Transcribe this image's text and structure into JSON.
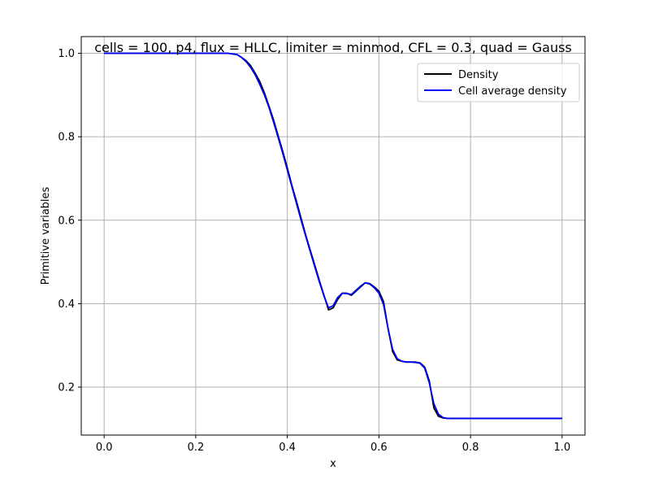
{
  "chart_data": {
    "type": "line",
    "title": "cells = 100, p4, flux = HLLC, limiter = minmod, CFL = 0.3, quad = Gauss",
    "xlabel": "x",
    "ylabel": "Primitive variables",
    "xlim": [
      -0.05,
      1.05
    ],
    "ylim": [
      0.085,
      1.04
    ],
    "xticks": [
      0.0,
      0.2,
      0.4,
      0.6,
      0.8,
      1.0
    ],
    "xtick_labels": [
      "0.0",
      "0.2",
      "0.4",
      "0.6",
      "0.8",
      "1.0"
    ],
    "yticks": [
      0.2,
      0.4,
      0.6,
      0.8,
      1.0
    ],
    "ytick_labels": [
      "0.2",
      "0.4",
      "0.6",
      "0.8",
      "1.0"
    ],
    "grid": true,
    "legend_position": "upper right",
    "series": [
      {
        "name": "Density",
        "color": "#000000",
        "x": [
          0.0,
          0.27,
          0.29,
          0.3,
          0.31,
          0.32,
          0.33,
          0.34,
          0.35,
          0.36,
          0.37,
          0.38,
          0.39,
          0.4,
          0.41,
          0.42,
          0.43,
          0.44,
          0.45,
          0.46,
          0.47,
          0.48,
          0.49,
          0.5,
          0.51,
          0.52,
          0.53,
          0.54,
          0.55,
          0.56,
          0.57,
          0.58,
          0.59,
          0.6,
          0.61,
          0.62,
          0.63,
          0.64,
          0.65,
          0.66,
          0.67,
          0.68,
          0.69,
          0.7,
          0.71,
          0.72,
          0.73,
          0.74,
          0.75,
          1.0
        ],
        "y": [
          1.0,
          1.0,
          0.997,
          0.99,
          0.982,
          0.97,
          0.952,
          0.932,
          0.905,
          0.873,
          0.84,
          0.802,
          0.765,
          0.725,
          0.683,
          0.645,
          0.605,
          0.565,
          0.528,
          0.492,
          0.455,
          0.42,
          0.385,
          0.39,
          0.41,
          0.425,
          0.425,
          0.42,
          0.43,
          0.44,
          0.45,
          0.448,
          0.44,
          0.43,
          0.405,
          0.34,
          0.285,
          0.265,
          0.262,
          0.26,
          0.26,
          0.26,
          0.258,
          0.248,
          0.215,
          0.15,
          0.13,
          0.126,
          0.125,
          0.125
        ]
      },
      {
        "name": "Cell average density",
        "color": "#0000ff",
        "x": [
          0.0,
          0.27,
          0.29,
          0.3,
          0.31,
          0.32,
          0.33,
          0.34,
          0.35,
          0.36,
          0.37,
          0.38,
          0.39,
          0.4,
          0.41,
          0.42,
          0.43,
          0.44,
          0.45,
          0.46,
          0.47,
          0.48,
          0.49,
          0.5,
          0.51,
          0.52,
          0.53,
          0.54,
          0.55,
          0.56,
          0.57,
          0.58,
          0.59,
          0.6,
          0.61,
          0.62,
          0.63,
          0.64,
          0.65,
          0.66,
          0.67,
          0.68,
          0.69,
          0.7,
          0.71,
          0.72,
          0.73,
          0.74,
          0.75,
          1.0
        ],
        "y": [
          1.0,
          1.0,
          0.997,
          0.99,
          0.98,
          0.966,
          0.948,
          0.925,
          0.9,
          0.87,
          0.835,
          0.798,
          0.76,
          0.72,
          0.68,
          0.64,
          0.6,
          0.562,
          0.525,
          0.488,
          0.452,
          0.418,
          0.39,
          0.395,
          0.415,
          0.425,
          0.424,
          0.422,
          0.432,
          0.442,
          0.45,
          0.447,
          0.438,
          0.425,
          0.398,
          0.34,
          0.29,
          0.268,
          0.262,
          0.26,
          0.26,
          0.259,
          0.257,
          0.245,
          0.21,
          0.16,
          0.135,
          0.127,
          0.125,
          0.125
        ]
      }
    ]
  }
}
